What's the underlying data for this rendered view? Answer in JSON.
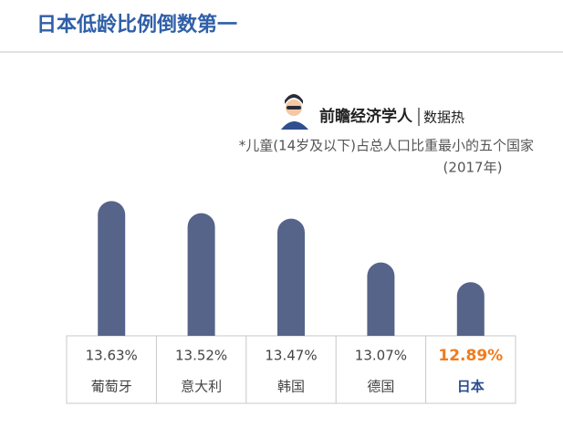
{
  "chart_data": {
    "type": "bar",
    "title": "日本低龄比例倒数第一",
    "brand": "前瞻经济学人",
    "brand_tag": "数据热",
    "subtitle": "*儿童(14岁及以下)占总人口比重最小的五个国家",
    "subtitle_year": "(2017年)",
    "categories": [
      "葡萄牙",
      "意大利",
      "韩国",
      "德国",
      "日本"
    ],
    "values": [
      13.63,
      13.52,
      13.47,
      13.07,
      12.89
    ],
    "value_labels": [
      "13.63%",
      "13.52%",
      "13.47%",
      "13.07%",
      "12.89%"
    ],
    "color": "#56648a",
    "ylim": [
      12.4,
      13.75
    ],
    "highlight_index": 4,
    "highlight_value_color": "#f07c1c",
    "highlight_category_color": "#2a4d8f"
  }
}
